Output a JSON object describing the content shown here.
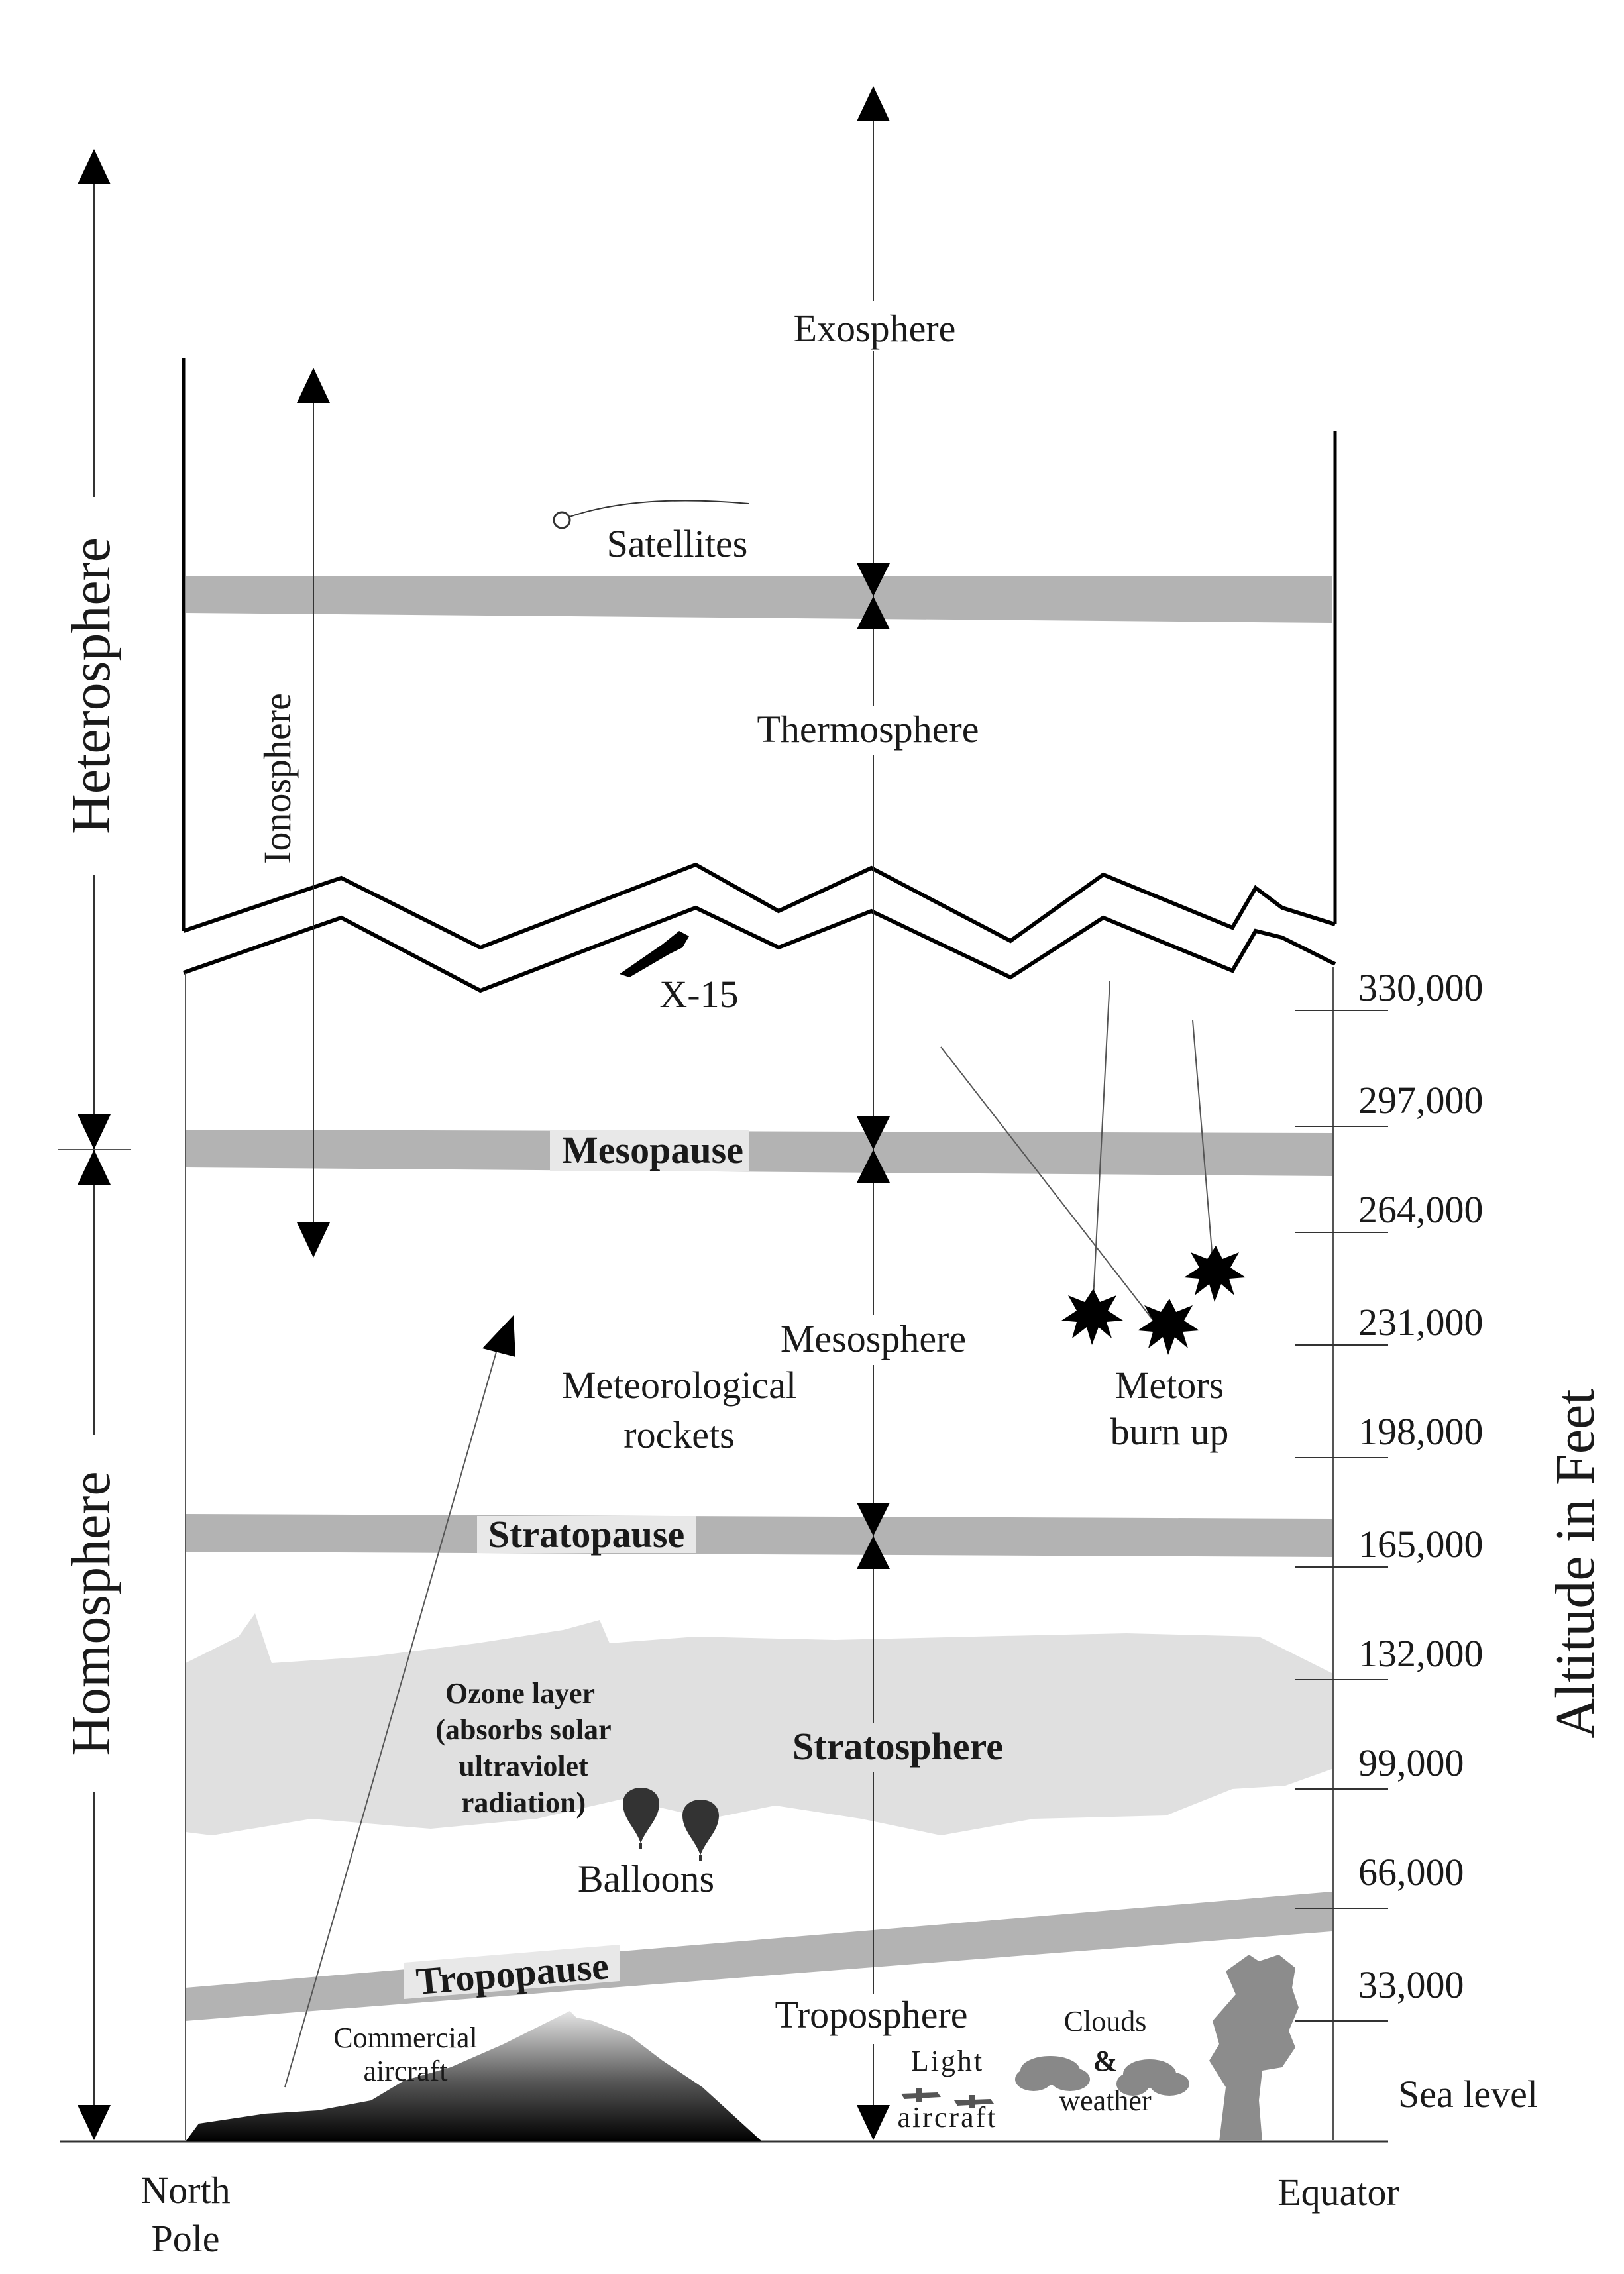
{
  "spheres": {
    "heterosphere": "Heterosphere",
    "homosphere": "Homosphere"
  },
  "layers": {
    "exosphere": "Exosphere",
    "thermosphere": "Thermosphere",
    "mesosphere": "Mesosphere",
    "stratosphere": "Stratosphere",
    "troposphere": "Troposphere",
    "ionosphere": "Ionosphere"
  },
  "pauses": {
    "mesopause": "Mesopause",
    "stratopause": "Stratopause",
    "tropopause": "Tropopause"
  },
  "objects": {
    "satellites": "Satellites",
    "x15": "X-15",
    "meteor_line1": "Metors",
    "meteor_line2": "burn up",
    "rockets_line1": "Meteorological",
    "rockets_line2": "rockets",
    "ozone_line1": "Ozone layer",
    "ozone_line2": "(absorbs solar",
    "ozone_line3": "ultraviolet",
    "ozone_line4": "radiation)",
    "balloons": "Balloons",
    "commercial_line1": "Commercial",
    "commercial_line2": "aircraft",
    "light_line1": "Light",
    "light_line2": "aircraft",
    "clouds_line1": "Clouds",
    "clouds_line2": "&",
    "clouds_line3": "weather"
  },
  "altitude_axis": {
    "title": "Altitude in Feet",
    "ticks": [
      "330,000",
      "297,000",
      "264,000",
      "231,000",
      "198,000",
      "165,000",
      "132,000",
      "99,000",
      "66,000",
      "33,000"
    ],
    "sea_level": "Sea level"
  },
  "bottom": {
    "north_line1": "North",
    "north_line2": "Pole",
    "equator": "Equator"
  },
  "colors": {
    "band": "#b3b3b3",
    "ozone": "#e0e0e0",
    "ink": "#1a1a1a",
    "tree": "#8c8c8c"
  }
}
